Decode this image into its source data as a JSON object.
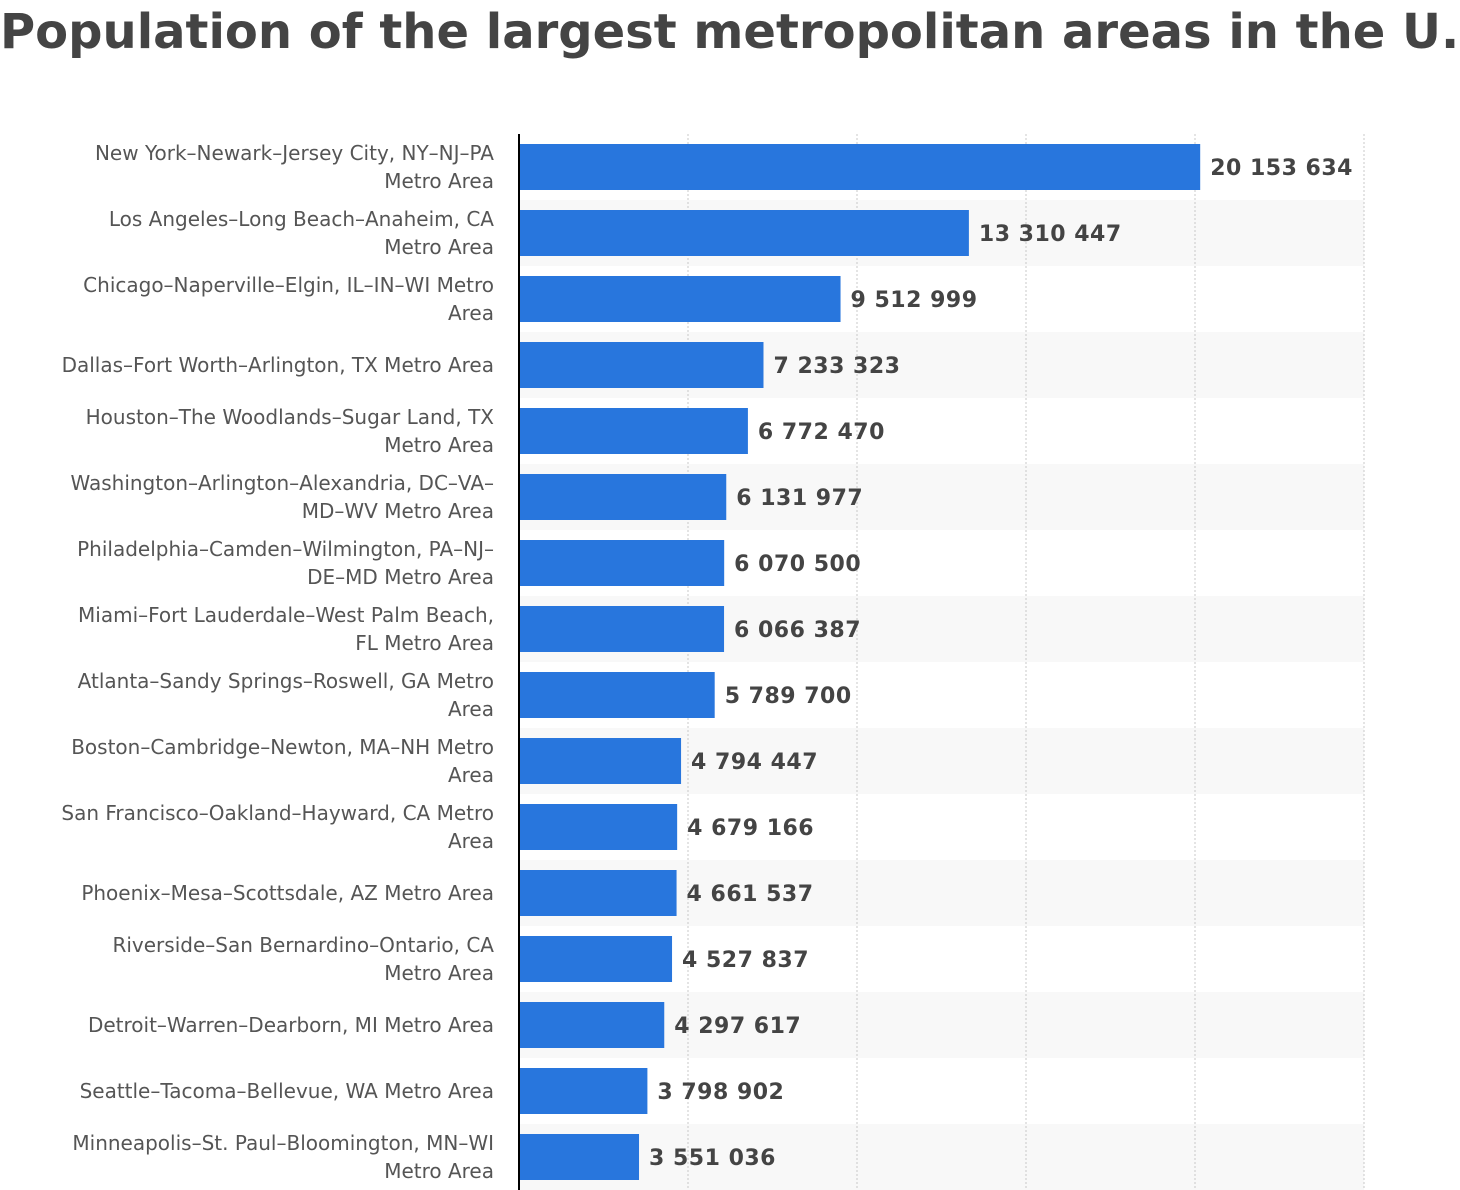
{
  "chart_data": {
    "type": "bar",
    "orientation": "horizontal",
    "title": "Population of the largest metropolitan areas in the U.S.",
    "categories": [
      "New York–Newark–Jersey City, NY–NJ–PA Metro Area",
      "Los Angeles–Long Beach–Anaheim, CA Metro Area",
      "Chicago–Naperville–Elgin, IL–IN–WI Metro Area",
      "Dallas–Fort Worth–Arlington, TX Metro Area",
      "Houston–The Woodlands–Sugar Land, TX Metro Area",
      "Washington–Arlington–Alexandria, DC–VA–MD–WV Metro Area",
      "Philadelphia–Camden–Wilmington, PA–NJ–DE–MD Metro Area",
      "Miami–Fort Lauderdale–West Palm Beach, FL Metro Area",
      "Atlanta–Sandy Springs–Roswell, GA Metro Area",
      "Boston–Cambridge–Newton, MA–NH Metro Area",
      "San Francisco–Oakland–Hayward, CA Metro Area",
      "Phoenix–Mesa–Scottsdale, AZ Metro Area",
      "Riverside–San Bernardino–Ontario, CA Metro Area",
      "Detroit–Warren–Dearborn, MI Metro Area",
      "Seattle–Tacoma–Bellevue, WA Metro Area",
      "Minneapolis–St. Paul–Bloomington, MN–WI Metro Area"
    ],
    "values": [
      20153634,
      13310447,
      9512999,
      7233323,
      6772470,
      6131977,
      6070500,
      6066387,
      5789700,
      4794447,
      4679166,
      4661537,
      4527837,
      4297617,
      3798902,
      3551036
    ],
    "value_labels": [
      "20 153 634",
      "13 310 447",
      "9 512 999",
      "7 233 323",
      "6 772 470",
      "6 131 977",
      "6 070 500",
      "6 066 387",
      "5 789 700",
      "4 794 447",
      "4 679 166",
      "4 661 537",
      "4 527 837",
      "4 297 617",
      "3 798 902",
      "3 551 036"
    ],
    "color": "#2876dd",
    "xlim": [
      0,
      25000000
    ],
    "xticks": [
      5000000,
      10000000,
      15000000,
      20000000,
      25000000
    ],
    "grid": true
  }
}
